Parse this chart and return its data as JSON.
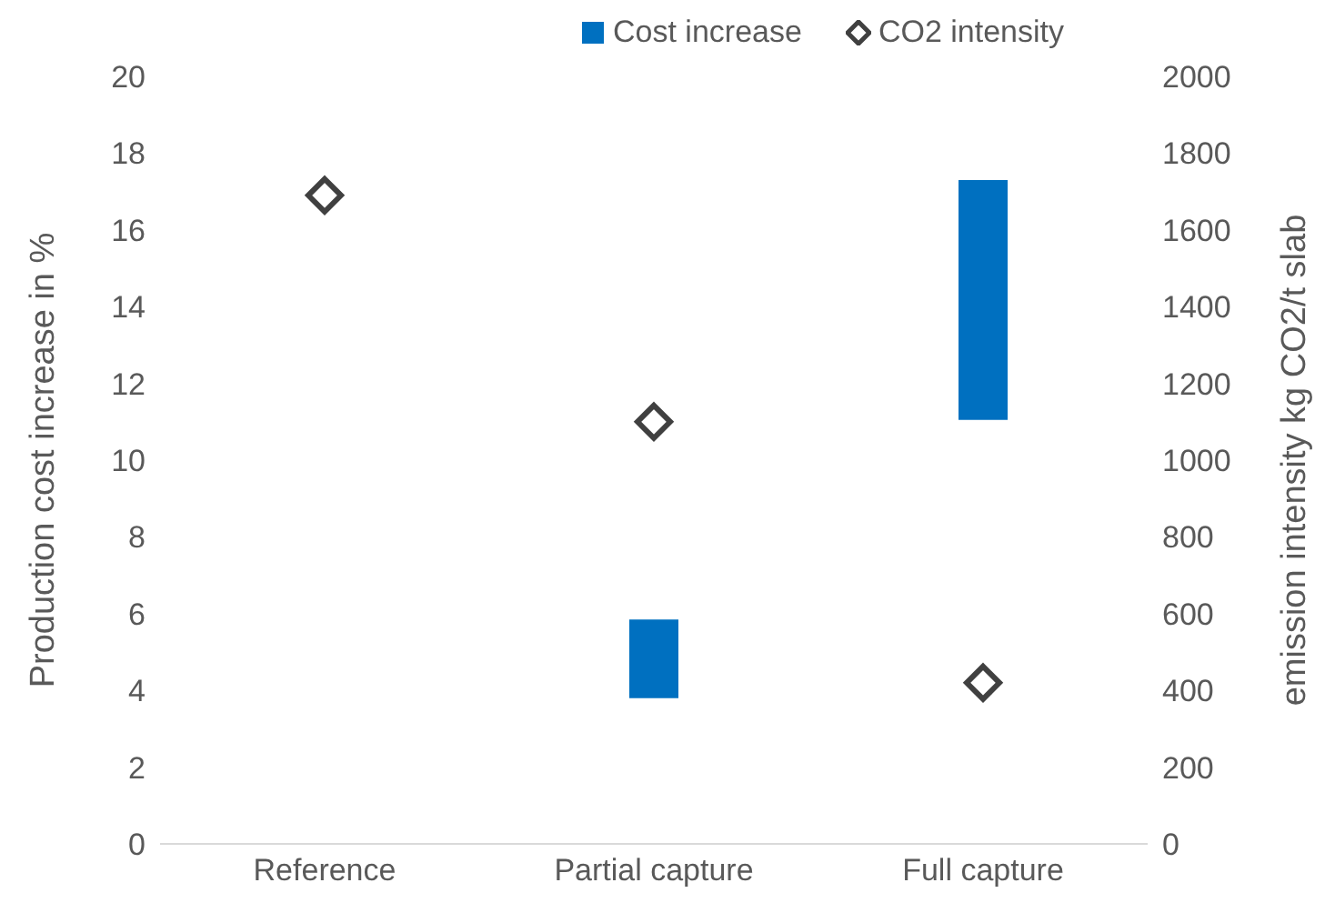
{
  "chart_data": {
    "type": "bar",
    "categories": [
      "Reference",
      "Partial capture",
      "Full capture"
    ],
    "ylabel": "Production cost increase in %",
    "y2label": "emission intensity kg CO2/t slab",
    "series": [
      {
        "name": "Cost increase",
        "color": "#0070c0",
        "values": [
          null,
          2.05,
          6.25
        ],
        "base": [
          null,
          3.8,
          11.05
        ]
      },
      {
        "name": "CO2 intensity",
        "type": "scatter",
        "axis": "y2",
        "color": "#404040",
        "marker": "diamond",
        "x": [
          "Reference",
          "Partial capture",
          "Full capture"
        ],
        "values": [
          1690,
          1100,
          420
        ]
      }
    ],
    "ylim": [
      0,
      20
    ],
    "yticks": [
      0,
      2,
      4,
      6,
      8,
      10,
      12,
      14,
      16,
      18,
      20
    ],
    "y2lim": [
      0,
      2000
    ],
    "y2ticks": [
      0,
      200,
      400,
      600,
      800,
      1000,
      1200,
      1400,
      1600,
      1800,
      2000
    ],
    "grid": false,
    "legend": "top"
  }
}
